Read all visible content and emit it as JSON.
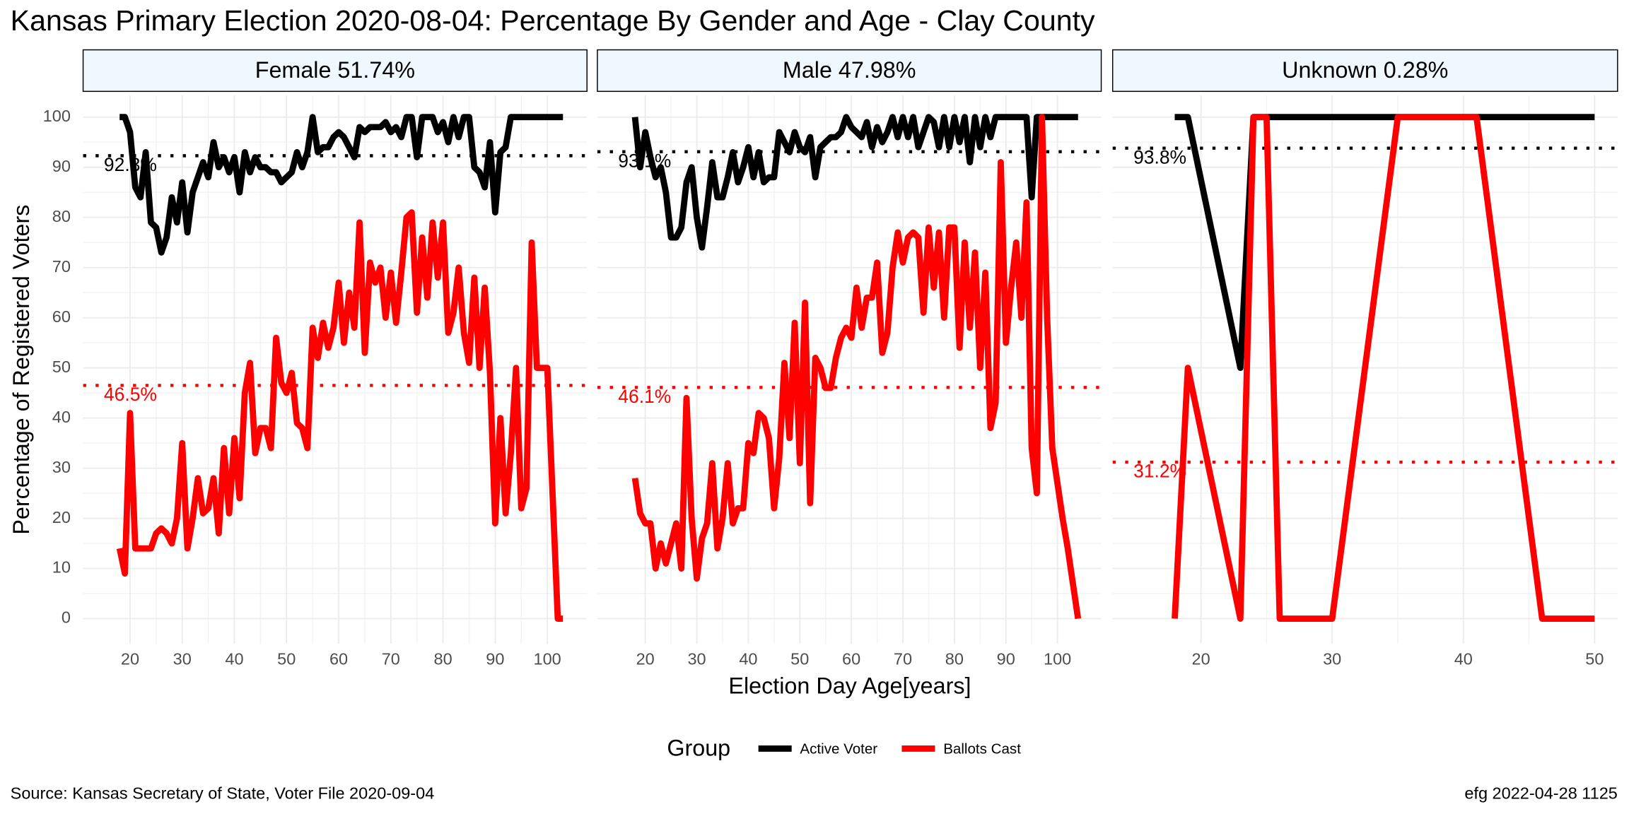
{
  "title": "Kansas Primary Election 2020-08-04:  Percentage By Gender and Age - Clay County",
  "x_label": "Election Day Age[years]",
  "y_label": "Percentage of Registered Voters",
  "legend_title": "Group",
  "caption_left": "Source:  Kansas Secretary of State, Voter File  2020-09-04",
  "caption_right": "efg 2022-04-28 1125",
  "chart_data": [
    {
      "type": "line",
      "title": "Female 51.74%",
      "x": [
        18,
        19,
        20,
        21,
        22,
        23,
        24,
        25,
        26,
        27,
        28,
        29,
        30,
        31,
        32,
        33,
        34,
        35,
        36,
        37,
        38,
        39,
        40,
        41,
        42,
        43,
        44,
        45,
        46,
        47,
        48,
        49,
        50,
        51,
        52,
        53,
        54,
        55,
        56,
        57,
        58,
        59,
        60,
        61,
        62,
        63,
        64,
        65,
        66,
        67,
        68,
        69,
        70,
        71,
        72,
        73,
        74,
        75,
        76,
        77,
        78,
        79,
        80,
        81,
        82,
        83,
        84,
        85,
        86,
        87,
        88,
        89,
        90,
        91,
        92,
        93,
        94,
        95,
        96,
        97,
        98,
        99,
        100,
        101,
        102,
        103
      ],
      "series": [
        {
          "name": "Active Voter",
          "color": "#000000",
          "values": [
            100,
            100,
            97,
            86,
            84,
            93,
            79,
            78,
            73,
            76,
            84,
            79,
            87,
            77,
            85,
            88,
            91,
            88,
            95,
            90,
            92,
            89,
            92,
            85,
            93,
            89,
            92,
            90,
            90,
            89,
            89,
            87,
            88,
            89,
            93,
            90,
            93,
            100,
            93,
            94,
            94,
            96,
            97,
            96,
            94,
            92,
            98,
            97,
            98,
            98,
            98,
            99,
            97,
            98,
            96,
            100,
            100,
            92,
            100,
            100,
            100,
            97,
            99,
            95,
            100,
            96,
            100,
            100,
            90,
            89,
            86,
            95,
            81,
            93,
            94,
            100,
            100,
            100,
            100,
            100,
            100,
            100,
            100,
            100,
            100,
            100
          ]
        },
        {
          "name": "Ballots Cast",
          "color": "#ff0000",
          "values": [
            14,
            9,
            41,
            14,
            14,
            14,
            14,
            17,
            18,
            17,
            15,
            20,
            35,
            14,
            20,
            28,
            21,
            22,
            28,
            17,
            34,
            21,
            36,
            24,
            45,
            51,
            33,
            38,
            38,
            34,
            56,
            47,
            45,
            49,
            39,
            38,
            34,
            58,
            52,
            59,
            54,
            58,
            67,
            55,
            65,
            58,
            79,
            53,
            71,
            67,
            70,
            60,
            69,
            59,
            69,
            80,
            81,
            61,
            76,
            64,
            79,
            68,
            79,
            57,
            61,
            70,
            57,
            51,
            68,
            50,
            66,
            49,
            19,
            40,
            21,
            33,
            50,
            22,
            26,
            75,
            50,
            50,
            50,
            25,
            0,
            0
          ]
        }
      ],
      "reference_lines": [
        {
          "value": 92.3,
          "label": "92.3%",
          "color": "#000000"
        },
        {
          "value": 46.5,
          "label": "46.5%",
          "color": "#ff0000"
        }
      ],
      "xlim": [
        11,
        107.6
      ],
      "xticks": [
        20,
        30,
        40,
        50,
        60,
        70,
        80,
        90,
        100
      ],
      "ylim": [
        -5,
        104.3
      ],
      "yticks": [
        0,
        10,
        20,
        30,
        40,
        50,
        60,
        70,
        80,
        90,
        100
      ],
      "grid": true
    },
    {
      "type": "line",
      "title": "Male 47.98%",
      "x": [
        18,
        19,
        20,
        21,
        22,
        23,
        24,
        25,
        26,
        27,
        28,
        29,
        30,
        31,
        32,
        33,
        34,
        35,
        36,
        37,
        38,
        39,
        40,
        41,
        42,
        43,
        44,
        45,
        46,
        47,
        48,
        49,
        50,
        51,
        52,
        53,
        54,
        55,
        56,
        57,
        58,
        59,
        60,
        61,
        62,
        63,
        64,
        65,
        66,
        67,
        68,
        69,
        70,
        71,
        72,
        73,
        74,
        75,
        76,
        77,
        78,
        79,
        80,
        81,
        82,
        83,
        84,
        85,
        86,
        87,
        88,
        89,
        90,
        91,
        92,
        93,
        94,
        95,
        96,
        97,
        98,
        99,
        100,
        101,
        102,
        103,
        104
      ],
      "series": [
        {
          "name": "Active Voter",
          "color": "#000000",
          "values": [
            100,
            90,
            97,
            92,
            88,
            90,
            85,
            76,
            76,
            78,
            87,
            90,
            80,
            74,
            82,
            91,
            84,
            84,
            88,
            93,
            87,
            90,
            94,
            88,
            93,
            87,
            88,
            88,
            97,
            95,
            93,
            97,
            94,
            93,
            96,
            88,
            94,
            95,
            96,
            96,
            97,
            100,
            98,
            97,
            96,
            99,
            94,
            98,
            95,
            97,
            100,
            96,
            100,
            96,
            100,
            94,
            97,
            100,
            99,
            94,
            100,
            94,
            100,
            95,
            100,
            91,
            100,
            94,
            100,
            96,
            100,
            100,
            100,
            100,
            100,
            100,
            100,
            84,
            100,
            100,
            100,
            100,
            100,
            100,
            100,
            100,
            100
          ]
        },
        {
          "name": "Ballots Cast",
          "color": "#ff0000",
          "values": [
            28,
            21,
            19,
            19,
            10,
            15,
            11,
            15,
            19,
            10,
            44,
            20,
            8,
            16,
            19,
            31,
            14,
            20,
            31,
            19,
            22,
            22,
            35,
            33,
            41,
            40,
            36,
            22,
            32,
            51,
            36,
            59,
            31,
            63,
            23,
            52,
            50,
            46,
            46,
            52,
            56,
            58,
            56,
            66,
            58,
            64,
            64,
            71,
            53,
            57,
            70,
            77,
            71,
            76,
            77,
            76,
            61,
            78,
            66,
            77,
            60,
            78,
            78,
            54,
            75,
            58,
            73,
            50,
            69,
            38,
            43,
            91,
            55,
            66,
            75,
            60,
            83,
            34,
            25,
            100,
            60,
            34,
            27,
            20,
            14,
            7,
            0
          ]
        }
      ],
      "reference_lines": [
        {
          "value": 93.1,
          "label": "93.1%",
          "color": "#000000"
        },
        {
          "value": 46.1,
          "label": "46.1%",
          "color": "#ff0000"
        }
      ],
      "xlim": [
        10.7,
        108.5
      ],
      "xticks": [
        20,
        30,
        40,
        50,
        60,
        70,
        80,
        90,
        100
      ],
      "ylim": [
        -5,
        104.3
      ],
      "yticks": [
        0,
        10,
        20,
        30,
        40,
        50,
        60,
        70,
        80,
        90,
        100
      ],
      "grid": true
    },
    {
      "type": "line",
      "title": "Unknown 0.28%",
      "x": [
        18,
        19,
        23,
        24,
        25,
        26,
        30,
        35,
        41,
        46,
        50
      ],
      "series": [
        {
          "name": "Active Voter",
          "color": "#000000",
          "values": [
            100,
            100,
            50,
            100,
            100,
            100,
            100,
            100,
            100,
            100,
            100
          ]
        },
        {
          "name": "Ballots Cast",
          "color": "#ff0000",
          "values": [
            0,
            50,
            0,
            100,
            100,
            0,
            0,
            100,
            100,
            0,
            0
          ]
        }
      ],
      "reference_lines": [
        {
          "value": 93.8,
          "label": "93.8%",
          "color": "#000000"
        },
        {
          "value": 31.2,
          "label": "31.2%",
          "color": "#ff0000"
        }
      ],
      "xlim": [
        13.27,
        51.75
      ],
      "xticks": [
        20,
        30,
        40,
        50
      ],
      "ylim": [
        -5,
        104.3
      ],
      "yticks": [
        0,
        10,
        20,
        30,
        40,
        50,
        60,
        70,
        80,
        90,
        100
      ],
      "grid": true
    }
  ]
}
